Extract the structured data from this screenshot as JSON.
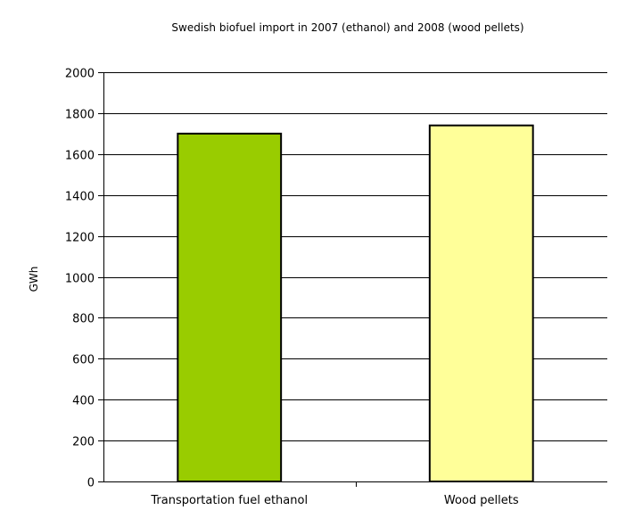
{
  "chart_data": {
    "type": "bar",
    "title": "Swedish biofuel import in 2007 (ethanol) and 2008 (wood pellets)",
    "xlabel": "",
    "ylabel": "GWh",
    "categories": [
      "Transportation fuel ethanol",
      "Wood pellets"
    ],
    "values": [
      1700,
      1740
    ],
    "bar_colors": [
      "#99cc00",
      "#ffff99"
    ],
    "ylim": [
      0,
      2000
    ],
    "yticks": [
      0,
      200,
      400,
      600,
      800,
      1000,
      1200,
      1400,
      1600,
      1800,
      2000
    ],
    "grid": true,
    "legend": "none"
  }
}
